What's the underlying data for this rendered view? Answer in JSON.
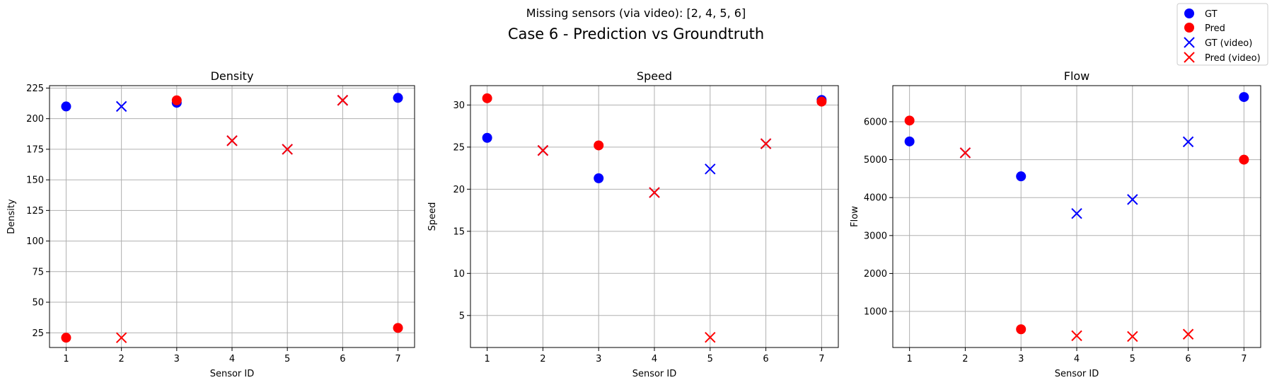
{
  "figure": {
    "suptitle": "Missing sensors (via video): [2, 4, 5, 6]",
    "title": "Case 6 - Prediction vs Groundtruth"
  },
  "legend": {
    "placement": "top-right",
    "entries": [
      {
        "label": "GT",
        "color": "#0000ff",
        "marker": "circle"
      },
      {
        "label": "Pred",
        "color": "#ff0000",
        "marker": "circle"
      },
      {
        "label": "GT (video)",
        "color": "#0000ff",
        "marker": "x"
      },
      {
        "label": "Pred (video)",
        "color": "#ff0000",
        "marker": "x"
      }
    ]
  },
  "chart_data": [
    {
      "type": "scatter",
      "title": "Density",
      "xlabel": "Sensor ID",
      "ylabel": "Density",
      "xlim": [
        0.7,
        7.3
      ],
      "ylim": [
        13,
        227
      ],
      "xticks": [
        1,
        2,
        3,
        4,
        5,
        6,
        7
      ],
      "yticks": [
        25,
        50,
        75,
        100,
        125,
        150,
        175,
        200,
        225
      ],
      "grid": true,
      "series": [
        {
          "name": "GT",
          "marker": "circle",
          "color": "#0000ff",
          "x": [
            1,
            3,
            7
          ],
          "y": [
            210,
            213,
            217
          ]
        },
        {
          "name": "Pred",
          "marker": "circle",
          "color": "#ff0000",
          "x": [
            1,
            3,
            7
          ],
          "y": [
            21,
            215,
            29
          ]
        },
        {
          "name": "GT (video)",
          "marker": "x",
          "color": "#0000ff",
          "x": [
            2,
            4,
            5,
            6
          ],
          "y": [
            210,
            182,
            175,
            215
          ]
        },
        {
          "name": "Pred (video)",
          "marker": "x",
          "color": "#ff0000",
          "x": [
            2,
            4,
            5,
            6
          ],
          "y": [
            21,
            182,
            175,
            215
          ]
        }
      ]
    },
    {
      "type": "scatter",
      "title": "Speed",
      "xlabel": "Sensor ID",
      "ylabel": "Speed",
      "xlim": [
        0.7,
        7.3
      ],
      "ylim": [
        1.2,
        32.3
      ],
      "xticks": [
        1,
        2,
        3,
        4,
        5,
        6,
        7
      ],
      "yticks": [
        5,
        10,
        15,
        20,
        25,
        30
      ],
      "grid": true,
      "series": [
        {
          "name": "GT",
          "marker": "circle",
          "color": "#0000ff",
          "x": [
            1,
            3,
            7
          ],
          "y": [
            26.1,
            21.3,
            30.6
          ]
        },
        {
          "name": "Pred",
          "marker": "circle",
          "color": "#ff0000",
          "x": [
            1,
            3,
            7
          ],
          "y": [
            30.8,
            25.2,
            30.4
          ]
        },
        {
          "name": "GT (video)",
          "marker": "x",
          "color": "#0000ff",
          "x": [
            2,
            4,
            5,
            6
          ],
          "y": [
            24.6,
            19.6,
            22.4,
            25.4
          ]
        },
        {
          "name": "Pred (video)",
          "marker": "x",
          "color": "#ff0000",
          "x": [
            2,
            4,
            5,
            6
          ],
          "y": [
            24.6,
            19.6,
            2.4,
            25.4
          ]
        }
      ]
    },
    {
      "type": "scatter",
      "title": "Flow",
      "xlabel": "Sensor ID",
      "ylabel": "Flow",
      "xlim": [
        0.7,
        7.3
      ],
      "ylim": [
        50,
        6950
      ],
      "xticks": [
        1,
        2,
        3,
        4,
        5,
        6,
        7
      ],
      "yticks": [
        1000,
        2000,
        3000,
        4000,
        5000,
        6000
      ],
      "grid": true,
      "series": [
        {
          "name": "GT",
          "marker": "circle",
          "color": "#0000ff",
          "x": [
            1,
            3,
            7
          ],
          "y": [
            5480,
            4560,
            6650
          ]
        },
        {
          "name": "Pred",
          "marker": "circle",
          "color": "#ff0000",
          "x": [
            1,
            3,
            7
          ],
          "y": [
            6030,
            530,
            5000
          ]
        },
        {
          "name": "GT (video)",
          "marker": "x",
          "color": "#0000ff",
          "x": [
            2,
            4,
            5,
            6
          ],
          "y": [
            5180,
            3580,
            3950,
            5470
          ]
        },
        {
          "name": "Pred (video)",
          "marker": "x",
          "color": "#ff0000",
          "x": [
            2,
            4,
            5,
            6
          ],
          "y": [
            5180,
            360,
            340,
            400
          ]
        }
      ]
    }
  ]
}
